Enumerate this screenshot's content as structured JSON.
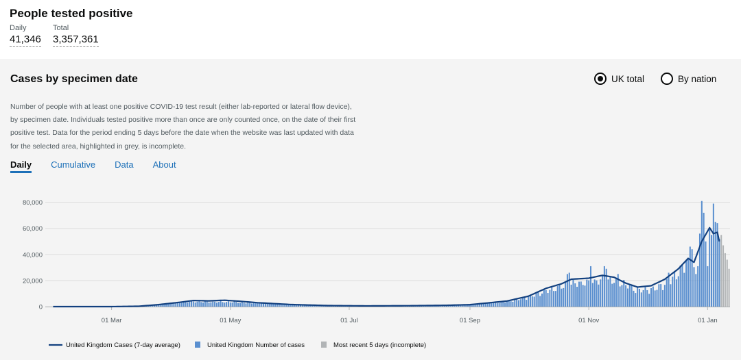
{
  "header": {
    "title": "People tested positive",
    "daily_label": "Daily",
    "daily_value": "41,346",
    "total_label": "Total",
    "total_value": "3,357,361"
  },
  "card": {
    "title": "Cases by specimen date",
    "radio_uk": "UK total",
    "radio_nation": "By nation",
    "radio_selected": "UK total",
    "description": [
      "Number of people with at least one positive COVID-19 test result (either lab-reported or lateral flow device),",
      "by specimen date. Individuals tested positive more than once are only counted once, on the date of their first",
      "positive test. Data for the period ending 5 days before the date when the website was last updated with data",
      "for the selected area, highlighted in grey, is incomplete."
    ],
    "tabs": [
      "Daily",
      "Cumulative",
      "Data",
      "About"
    ],
    "active_tab": "Daily"
  },
  "colors": {
    "bar": "#5a8fcf",
    "line": "#12407f",
    "incomplete": "#b1b4b6",
    "background": "#f4f4f4"
  },
  "chart_data": {
    "type": "bar",
    "y_ticks": [
      0,
      20000,
      40000,
      60000,
      80000
    ],
    "y_tick_labels": [
      "0",
      "20,000",
      "40,000",
      "60,000",
      "80,000"
    ],
    "ylim": [
      0,
      84000
    ],
    "x_ticks": [
      "01 Mar",
      "01 May",
      "01 Jul",
      "01 Sep",
      "01 Nov",
      "01 Jan"
    ],
    "x_tick_dates": [
      "2020-03-01",
      "2020-05-01",
      "2020-07-01",
      "2020-09-01",
      "2020-11-01",
      "2021-01-01"
    ],
    "date_range": [
      "2020-01-31",
      "2021-01-12"
    ],
    "grid": true,
    "legend_position": "bottom",
    "legend": [
      "United Kingdom Cases (7-day average)",
      "United Kingdom Number of cases",
      "Most recent 5 days (incomplete)"
    ],
    "daily_series_keypoints": [
      [
        "2020-01-31",
        0
      ],
      [
        "2020-02-28",
        0
      ],
      [
        "2020-03-10",
        60
      ],
      [
        "2020-03-20",
        700
      ],
      [
        "2020-04-01",
        3000
      ],
      [
        "2020-04-10",
        4500
      ],
      [
        "2020-04-20",
        4200
      ],
      [
        "2020-05-01",
        4200
      ],
      [
        "2020-05-15",
        2800
      ],
      [
        "2020-06-01",
        1600
      ],
      [
        "2020-06-20",
        900
      ],
      [
        "2020-07-15",
        600
      ],
      [
        "2020-08-01",
        800
      ],
      [
        "2020-08-20",
        1100
      ],
      [
        "2020-09-01",
        1600
      ],
      [
        "2020-09-10",
        3000
      ],
      [
        "2020-09-20",
        4500
      ],
      [
        "2020-10-01",
        8500
      ],
      [
        "2020-10-10",
        14000
      ],
      [
        "2020-10-20",
        19000
      ],
      [
        "2020-10-25",
        21000
      ],
      [
        "2020-11-01",
        21500
      ],
      [
        "2020-11-06",
        23500
      ],
      [
        "2020-11-12",
        24000
      ],
      [
        "2020-11-20",
        20000
      ],
      [
        "2020-11-25",
        15000
      ],
      [
        "2020-12-01",
        15000
      ],
      [
        "2020-12-05",
        16000
      ],
      [
        "2020-12-12",
        22000
      ],
      [
        "2020-12-18",
        33000
      ],
      [
        "2020-12-23",
        38000
      ],
      [
        "2020-12-26",
        33000
      ],
      [
        "2020-12-29",
        58000
      ],
      [
        "2021-01-02",
        62000
      ],
      [
        "2021-01-05",
        58000
      ],
      [
        "2021-01-07",
        46000
      ],
      [
        "2021-01-12",
        28000
      ]
    ],
    "average_series_keypoints": [
      [
        "2020-01-31",
        0
      ],
      [
        "2020-03-01",
        0
      ],
      [
        "2020-03-15",
        300
      ],
      [
        "2020-03-25",
        1500
      ],
      [
        "2020-04-05",
        3300
      ],
      [
        "2020-04-12",
        4700
      ],
      [
        "2020-04-20",
        4400
      ],
      [
        "2020-04-28",
        4900
      ],
      [
        "2020-05-05",
        4200
      ],
      [
        "2020-05-15",
        3000
      ],
      [
        "2020-06-01",
        1600
      ],
      [
        "2020-06-20",
        800
      ],
      [
        "2020-07-10",
        550
      ],
      [
        "2020-08-01",
        700
      ],
      [
        "2020-08-20",
        1000
      ],
      [
        "2020-09-01",
        1500
      ],
      [
        "2020-09-10",
        2800
      ],
      [
        "2020-09-20",
        4300
      ],
      [
        "2020-10-01",
        8000
      ],
      [
        "2020-10-10",
        14000
      ],
      [
        "2020-10-18",
        17500
      ],
      [
        "2020-10-23",
        21000
      ],
      [
        "2020-11-01",
        21800
      ],
      [
        "2020-11-08",
        24000
      ],
      [
        "2020-11-14",
        22500
      ],
      [
        "2020-11-20",
        18000
      ],
      [
        "2020-11-26",
        15000
      ],
      [
        "2020-12-03",
        16000
      ],
      [
        "2020-12-10",
        21000
      ],
      [
        "2020-12-17",
        29000
      ],
      [
        "2020-12-22",
        37000
      ],
      [
        "2020-12-25",
        34000
      ],
      [
        "2020-12-29",
        50000
      ],
      [
        "2021-01-02",
        60500
      ],
      [
        "2021-01-04",
        56000
      ],
      [
        "2021-01-06",
        57000
      ],
      [
        "2021-01-07",
        50000
      ]
    ],
    "spikes": [
      [
        "2020-10-21",
        25000
      ],
      [
        "2020-10-22",
        26000
      ],
      [
        "2020-11-02",
        31000
      ],
      [
        "2020-11-09",
        31000
      ],
      [
        "2020-11-10",
        29000
      ],
      [
        "2020-11-16",
        25000
      ],
      [
        "2020-12-12",
        26000
      ],
      [
        "2020-12-21",
        35000
      ],
      [
        "2020-12-23",
        46000
      ],
      [
        "2020-12-24",
        44000
      ],
      [
        "2020-12-26",
        25000
      ],
      [
        "2020-12-27",
        31000
      ],
      [
        "2020-12-28",
        56000
      ],
      [
        "2020-12-29",
        81000
      ],
      [
        "2020-12-30",
        72000
      ],
      [
        "2020-12-31",
        50000
      ],
      [
        "2021-01-01",
        31000
      ],
      [
        "2021-01-02",
        60000
      ],
      [
        "2021-01-03",
        55000
      ],
      [
        "2021-01-04",
        79000
      ],
      [
        "2021-01-05",
        65000
      ],
      [
        "2021-01-06",
        64000
      ],
      [
        "2021-01-07",
        52000
      ]
    ],
    "incomplete_days": [
      [
        "2021-01-08",
        55000
      ],
      [
        "2021-01-09",
        47000
      ],
      [
        "2021-01-10",
        41000
      ],
      [
        "2021-01-11",
        36000
      ],
      [
        "2021-01-12",
        29000
      ]
    ]
  }
}
